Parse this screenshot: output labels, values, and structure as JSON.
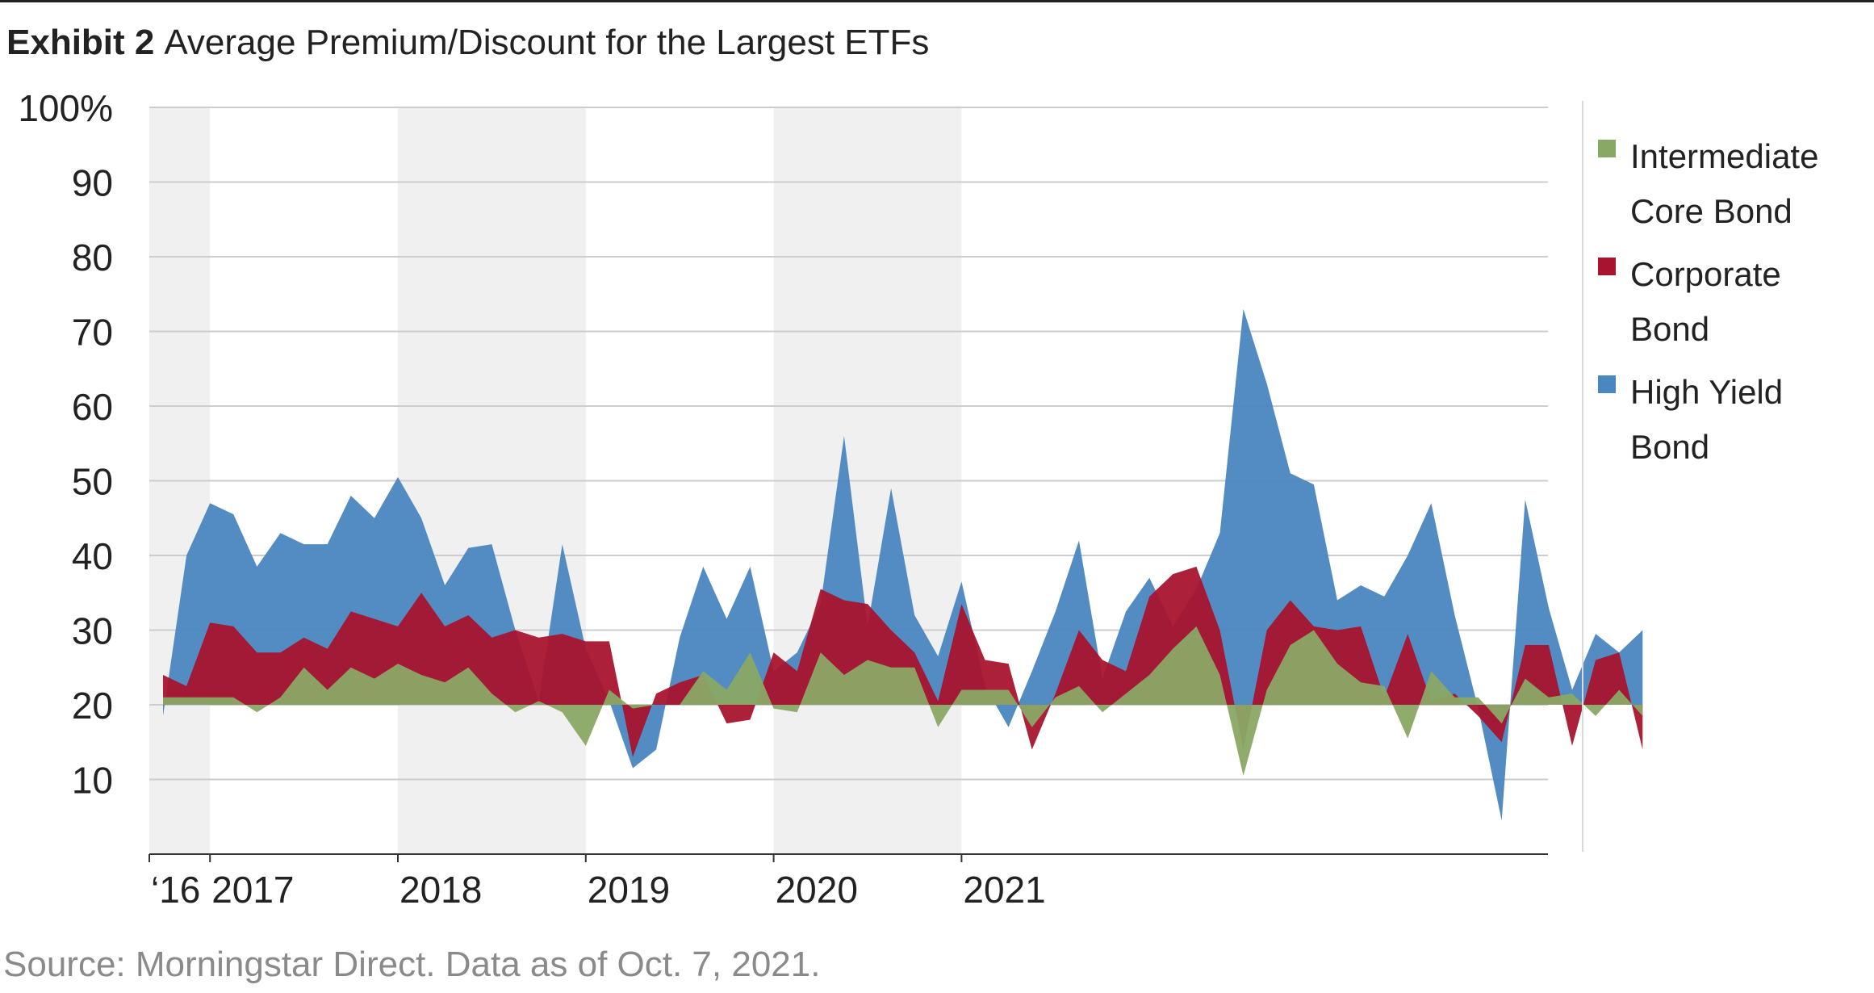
{
  "header": {
    "exhibit": "Exhibit 2",
    "title": "Average Premium/Discount for the Largest ETFs"
  },
  "footer": {
    "source": "Source: Morningstar Direct. Data as of Oct. 7, 2021."
  },
  "legend": {
    "items": [
      {
        "label": "Intermediate Core Bond",
        "color": "#8aa865"
      },
      {
        "label": "Corporate Bond",
        "color": "#a8142e"
      },
      {
        "label": "High Yield Bond",
        "color": "#4a86c0"
      }
    ],
    "placement": "right"
  },
  "chart_data": {
    "type": "area",
    "title": "Average Premium/Discount for the Largest ETFs",
    "xlabel": "",
    "ylabel": "",
    "ylim": [
      0,
      100
    ],
    "y_ticks": [
      {
        "value": 100,
        "label": "100%"
      },
      {
        "value": 90,
        "label": "90"
      },
      {
        "value": 80,
        "label": "80"
      },
      {
        "value": 70,
        "label": "70"
      },
      {
        "value": 60,
        "label": "60"
      },
      {
        "value": 50,
        "label": "50"
      },
      {
        "value": 40,
        "label": "40"
      },
      {
        "value": 30,
        "label": "30"
      },
      {
        "value": 20,
        "label": "20"
      },
      {
        "value": 10,
        "label": "10"
      }
    ],
    "baseline": 20,
    "x_ticks": [
      {
        "value": 0,
        "label": "‘16"
      },
      {
        "value": 2,
        "label": "2017"
      },
      {
        "value": 10,
        "label": "2018"
      },
      {
        "value": 18,
        "label": "2019"
      },
      {
        "value": 26,
        "label": "2020"
      },
      {
        "value": 34,
        "label": "2021"
      }
    ],
    "shaded_bands": [
      [
        0,
        2
      ],
      [
        10,
        18
      ],
      [
        26,
        34
      ]
    ],
    "grid": true,
    "series": [
      {
        "name": "High Yield Bond",
        "color": "#4a86c0",
        "values": [
          18.5,
          40,
          47,
          45.5,
          38.5,
          43,
          41.5,
          41.5,
          48,
          45,
          50.5,
          45,
          36,
          41,
          41.5,
          30,
          20.5,
          41.5,
          27.5,
          20.5,
          11.5,
          14,
          29,
          38.5,
          31.5,
          38.5,
          24.5,
          27,
          33.5,
          56,
          30.5,
          49,
          32,
          26.5,
          36.5,
          22.5,
          17,
          24.5,
          32.5,
          42,
          23.5,
          32.5,
          37,
          30.5,
          35.5,
          43,
          73,
          63,
          51,
          49.5,
          34,
          36,
          34.5,
          40,
          47,
          32,
          19.5,
          4.5,
          47.5,
          33,
          22,
          29.5,
          27,
          30
        ]
      },
      {
        "name": "Corporate Bond",
        "color": "#a8142e",
        "values": [
          24,
          22.5,
          31,
          30.5,
          27,
          27,
          29,
          27.5,
          32.5,
          31.5,
          30.5,
          35,
          30.5,
          32,
          29,
          30,
          29,
          29.5,
          28.5,
          28.5,
          13,
          21.5,
          23,
          24,
          17.5,
          18,
          27,
          24.5,
          35.5,
          34,
          33.5,
          30,
          27,
          20.5,
          33.5,
          26,
          25.5,
          14,
          21.5,
          30,
          26,
          24.5,
          34.5,
          37.5,
          38.5,
          30,
          14,
          30,
          34,
          30.5,
          30,
          30.5,
          21,
          29.5,
          20.5,
          21.5,
          18.5,
          15,
          28,
          28,
          14.5,
          26,
          27,
          14
        ]
      },
      {
        "name": "Intermediate Core Bond",
        "color": "#8aa865",
        "values": [
          21,
          21,
          21,
          21,
          19,
          21,
          25,
          22,
          25,
          23.5,
          25.5,
          24,
          23,
          25,
          21.5,
          19,
          20.5,
          19,
          14.5,
          22,
          19.5,
          20,
          20,
          24.5,
          22,
          27,
          19.5,
          19,
          27,
          24,
          26,
          25,
          25,
          17,
          22,
          22,
          22,
          17,
          21,
          22.5,
          19,
          21.5,
          24,
          27.5,
          30.5,
          24,
          10.5,
          22,
          28,
          30,
          25.5,
          23,
          22.5,
          15.5,
          24.5,
          21,
          21,
          17.5,
          23.5,
          21,
          21.5,
          18.5,
          22,
          18.5
        ]
      }
    ]
  }
}
